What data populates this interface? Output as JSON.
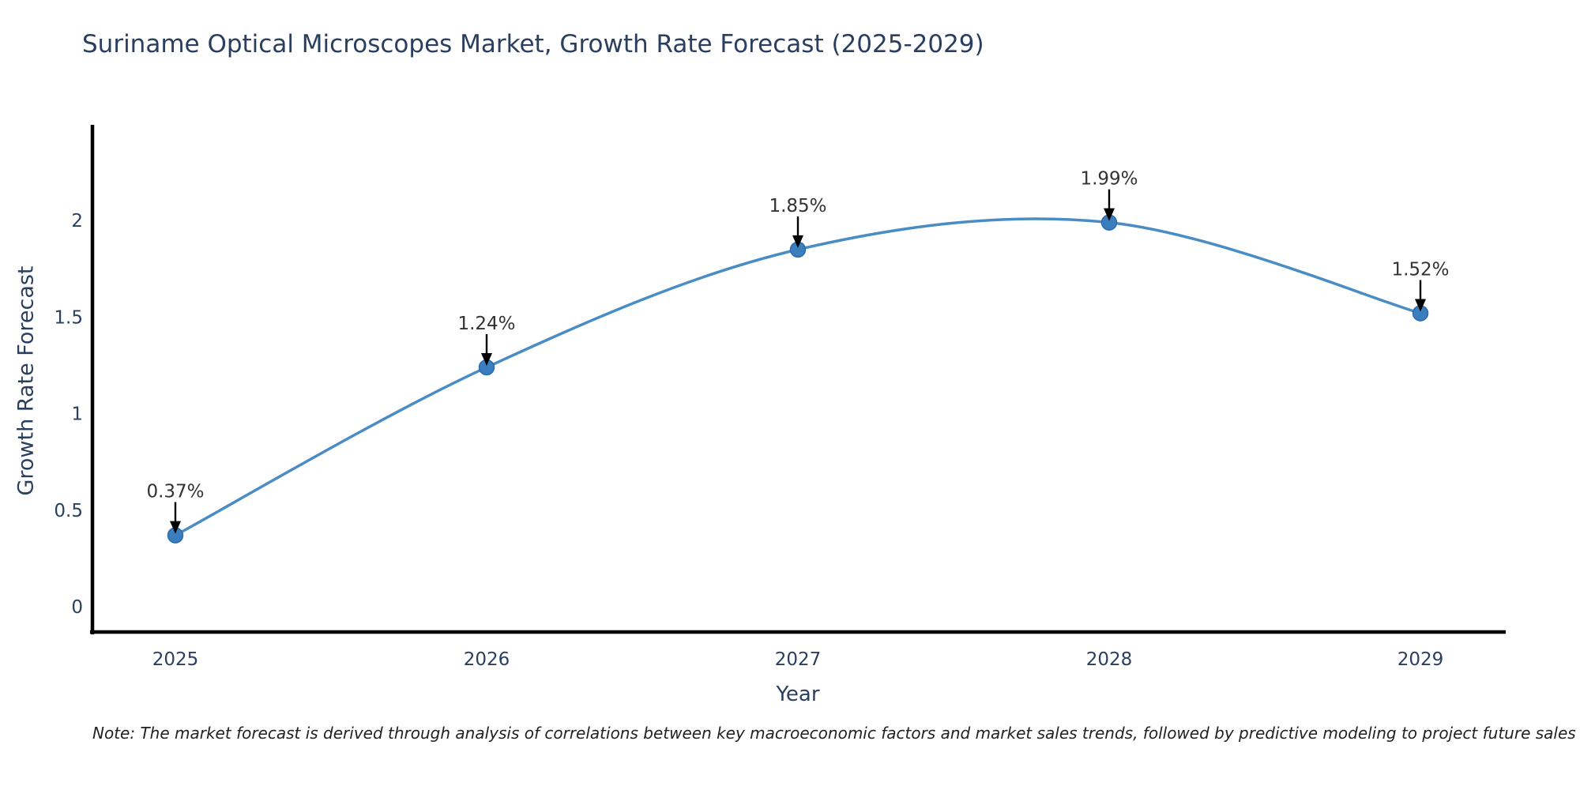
{
  "chart_data": {
    "type": "line",
    "title": "Suriname Optical Microscopes Market, Growth Rate Forecast (2025-2029)",
    "xlabel": "Year",
    "ylabel": "Growth Rate Forecast",
    "x": [
      2025,
      2026,
      2027,
      2028,
      2029
    ],
    "series": [
      {
        "name": "Growth Rate Forecast",
        "values": [
          0.37,
          1.24,
          1.85,
          1.99,
          1.52
        ]
      }
    ],
    "point_labels": [
      "0.37%",
      "1.24%",
      "1.85%",
      "1.99%",
      "1.52%"
    ],
    "xtick_labels": [
      "2025",
      "2026",
      "2027",
      "2028",
      "2029"
    ],
    "yticks": [
      0,
      0.5,
      1,
      1.5,
      2
    ],
    "ytick_labels": [
      "0",
      "0.5",
      "1",
      "1.5",
      "2"
    ],
    "ylim": [
      -0.13,
      2.5
    ],
    "grid": false,
    "legend": "none",
    "line_shape": "spline",
    "annotation_style": "down-arrow",
    "note": "Note: The market forecast is derived through analysis of correlations between key macroeconomic factors and market sales trends, followed by predictive modeling to project future sales",
    "colors": {
      "line": "#4a8cc4",
      "marker": "#3a7ebf",
      "marker_edge": "#2f6ba8",
      "axis": "#000000",
      "tick_text": "#2a3f5f",
      "title_text": "#2a3f5f",
      "annotation_text": "#333333",
      "arrow": "#000000",
      "note_text": "#222222",
      "background": "#ffffff"
    }
  }
}
